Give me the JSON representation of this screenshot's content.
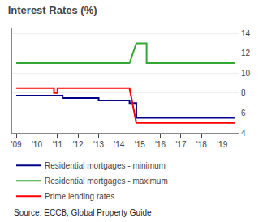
{
  "chart_data": {
    "type": "line",
    "title": "Interest Rates (%)",
    "annotations": [
      "Source: ECCB, Global Property Guide"
    ],
    "xlim": [
      2008.8,
      2019.8
    ],
    "xticks": [
      {
        "value": 2009,
        "label": "'09"
      },
      {
        "value": 2010,
        "label": "'10"
      },
      {
        "value": 2011,
        "label": "'11"
      },
      {
        "value": 2012,
        "label": "'12"
      },
      {
        "value": 2013,
        "label": "'13"
      },
      {
        "value": 2014,
        "label": "'14"
      },
      {
        "value": 2015,
        "label": "'15"
      },
      {
        "value": 2016,
        "label": "'16"
      },
      {
        "value": 2017,
        "label": "'17"
      },
      {
        "value": 2018,
        "label": "'18"
      },
      {
        "value": 2019,
        "label": "'19"
      }
    ],
    "ylim": [
      4,
      14.5
    ],
    "yticks": [
      4,
      6,
      8,
      10,
      12,
      14
    ],
    "grid": true,
    "legend": "bottom",
    "series": [
      {
        "name": "Residential mortgages - minimum",
        "color": "#00008B",
        "x": [
          2009.0,
          2010.83,
          2010.83,
          2011.25,
          2011.25,
          2013.0,
          2013.0,
          2014.5,
          2014.5,
          2014.83,
          2014.83,
          2019.6
        ],
        "values": [
          7.75,
          7.75,
          7.75,
          7.75,
          7.5,
          7.5,
          7.25,
          7.25,
          7.0,
          7.0,
          5.5,
          5.5
        ]
      },
      {
        "name": "Residential mortgages - maximum",
        "color": "#32a832",
        "x": [
          2009.0,
          2014.5,
          2014.5,
          2014.83,
          2014.83,
          2015.33,
          2015.33,
          2019.6
        ],
        "values": [
          11.0,
          11.0,
          11.0,
          13.0,
          13.0,
          13.0,
          11.0,
          11.0
        ]
      },
      {
        "name": "Prime lending rates",
        "color": "#ff0000",
        "x": [
          2009.0,
          2010.83,
          2010.83,
          2011.0,
          2011.0,
          2011.25,
          2011.25,
          2014.5,
          2014.5,
          2014.83,
          2014.83,
          2019.6
        ],
        "values": [
          8.5,
          8.5,
          8.0,
          8.0,
          8.5,
          8.5,
          8.5,
          8.5,
          8.5,
          5.0,
          5.0,
          5.0
        ]
      }
    ]
  }
}
